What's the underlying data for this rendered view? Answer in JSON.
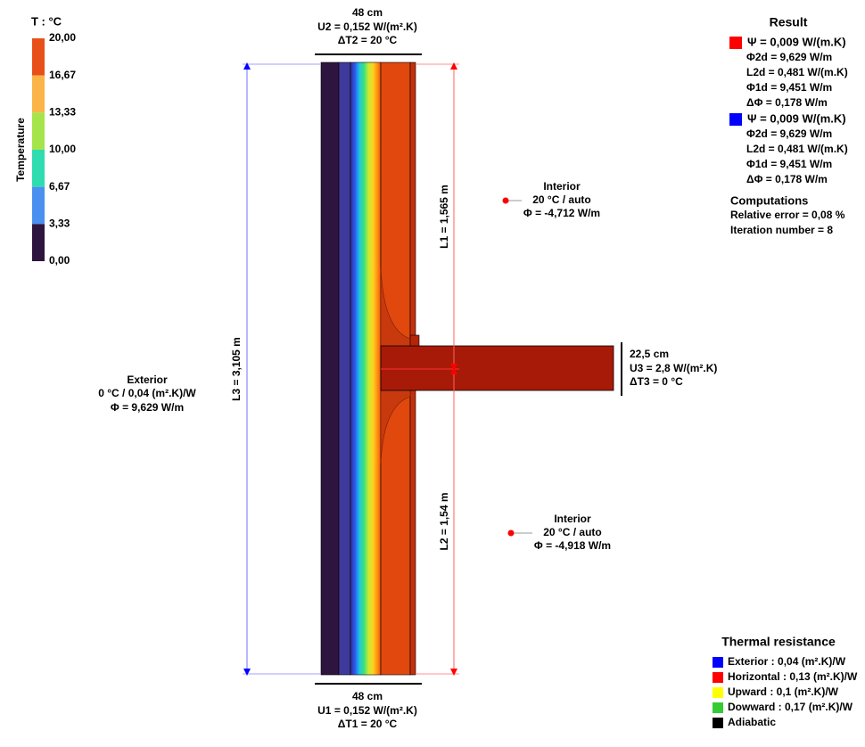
{
  "legend": {
    "title": "T : °C",
    "axis_label": "Temperature",
    "ticks": [
      "20,00",
      "16,67",
      "13,33",
      "10,00",
      "6,67",
      "3,33",
      "0,00"
    ],
    "colors": [
      "#e8501a",
      "#fbb447",
      "#a6e44c",
      "#2fdcb0",
      "#4a90f0",
      "#2d1540"
    ]
  },
  "top_dimension": {
    "width": "48 cm",
    "u": "U2 = 0,152 W/(m².K)",
    "dt": "ΔT2 = 20 °C"
  },
  "bottom_dimension": {
    "width": "48 cm",
    "u": "U1 = 0,152 W/(m².K)",
    "dt": "ΔT1 = 20 °C"
  },
  "slab_dimension": {
    "width": "22,5 cm",
    "u": "U3 = 2,8 W/(m².K)",
    "dt": "ΔT3 = 0 °C"
  },
  "lengths": {
    "l3": "L3 = 3,105 m",
    "l1": "L1 = 1,565 m",
    "l2": "L2 = 1,54 m"
  },
  "exterior": {
    "label": "Exterior",
    "conditions": "0 °C / 0,04 (m².K)/W",
    "flux": "Φ = 9,629 W/m"
  },
  "interior_upper": {
    "label": "Interior",
    "conditions": "20 °C / auto",
    "flux": "Φ = -4,712 W/m"
  },
  "interior_lower": {
    "label": "Interior",
    "conditions": "20 °C / auto",
    "flux": "Φ = -4,918 W/m"
  },
  "result": {
    "title": "Result",
    "blocks": [
      {
        "color": "#ff0000",
        "lines": [
          "Ψ = 0,009 W/(m.K)",
          "Φ2d = 9,629 W/m",
          "L2d = 0,481 W/(m.K)",
          "Φ1d = 9,451 W/m",
          "ΔΦ = 0,178 W/m"
        ]
      },
      {
        "color": "#0000ff",
        "lines": [
          "Ψ = 0,009 W/(m.K)",
          "Φ2d = 9,629 W/m",
          "L2d = 0,481 W/(m.K)",
          "Φ1d = 9,451 W/m",
          "ΔΦ = 0,178 W/m"
        ]
      }
    ]
  },
  "computations": {
    "title": "Computations",
    "lines": [
      "Relative error = 0,08 %",
      "Iteration number = 8"
    ]
  },
  "thermal_resistance": {
    "title": "Thermal resistance",
    "items": [
      {
        "color": "#0000ff",
        "label": "Exterior : 0,04 (m².K)/W"
      },
      {
        "color": "#ff0000",
        "label": "Horizontal : 0,13 (m².K)/W"
      },
      {
        "color": "#ffff00",
        "label": "Upward : 0,1 (m².K)/W"
      },
      {
        "color": "#33cc33",
        "label": "Dowward : 0,17 (m².K)/W"
      },
      {
        "color": "#000000",
        "label": "Adiabatic"
      }
    ]
  }
}
